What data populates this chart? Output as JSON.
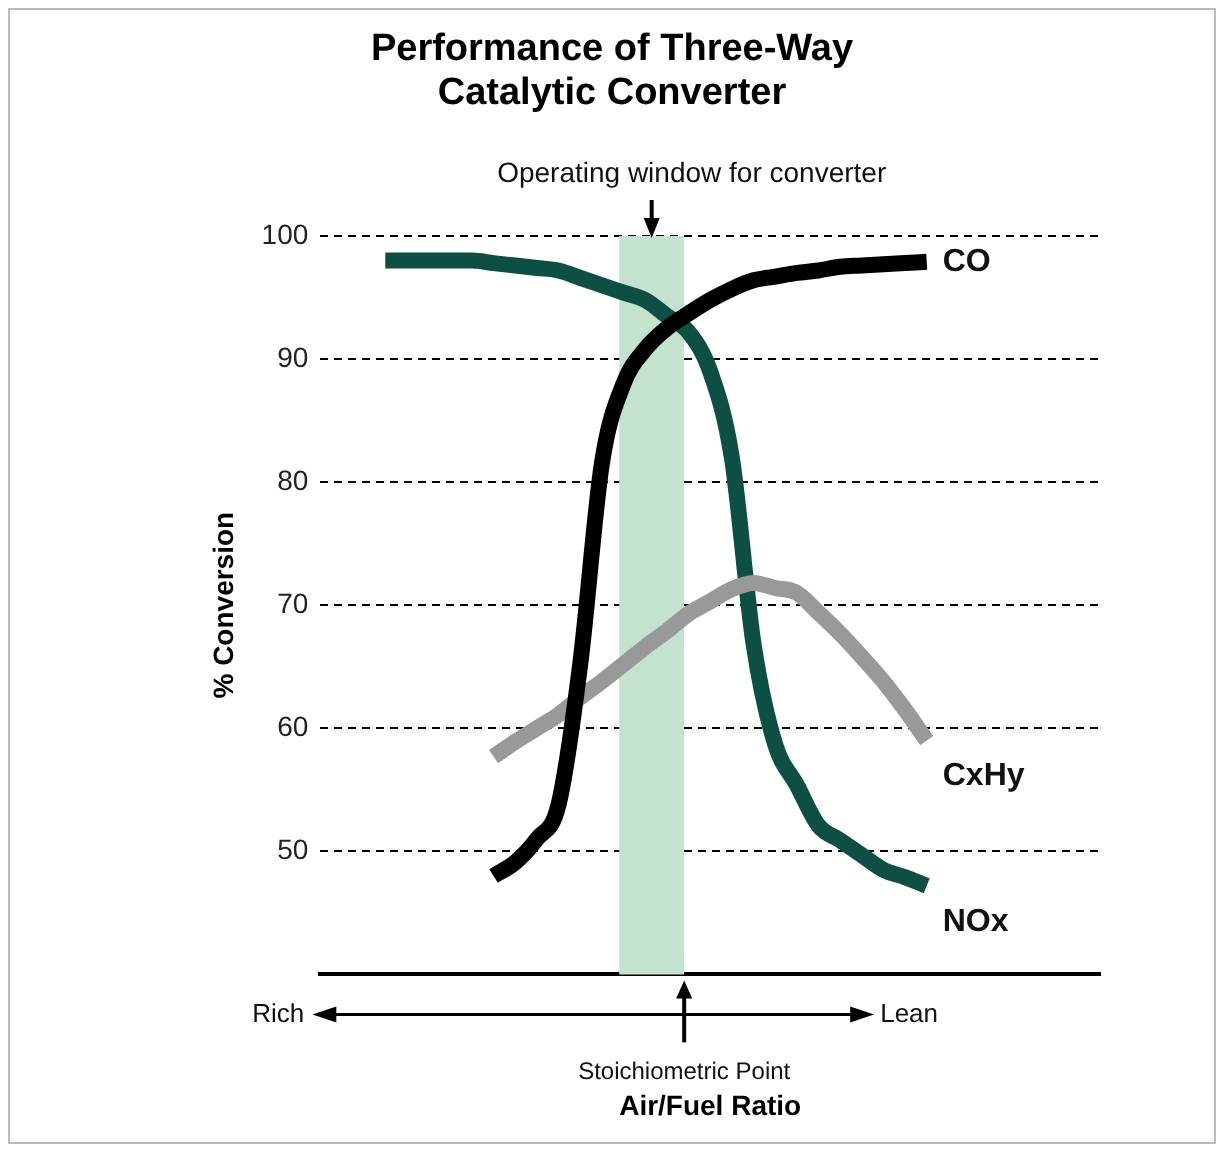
{
  "chart_data": {
    "type": "line",
    "title": "Performance of Three-Way Catalytic Converter",
    "xlabel": "Air/Fuel Ratio",
    "ylabel": "% Conversion",
    "categories": [
      null,
      null,
      null,
      null,
      null,
      null,
      null,
      null,
      null,
      null,
      null,
      null,
      null,
      null,
      null,
      null,
      null,
      null,
      null,
      null,
      null,
      null,
      null,
      null,
      null,
      null,
      null,
      null,
      null,
      null,
      null,
      null,
      null,
      null,
      null,
      null,
      null
    ],
    "ylim": [
      40,
      100
    ],
    "yticks": [
      50,
      60,
      70,
      80,
      90,
      100
    ],
    "tick_labels": "y",
    "grid": "y",
    "legend": false,
    "marker": "none",
    "line_style": "solid",
    "series": [
      {
        "name": "CO",
        "color": "#000000",
        "values": [
          null,
          null,
          null,
          null,
          null,
          null,
          null,
          null,
          48,
          49.1,
          51,
          53.8,
          65.2,
          81.5,
          88,
          90.8,
          92.5,
          93.7,
          94.8,
          95.7,
          96.4,
          96.7,
          97,
          97.2,
          97.5,
          97.6,
          97.7,
          97.8,
          97.9,
          null,
          null,
          null,
          null,
          null,
          null,
          null,
          null
        ]
      },
      {
        "name": "CxHy",
        "color": "#999999",
        "values": [
          null,
          null,
          null,
          null,
          null,
          null,
          null,
          null,
          57.7,
          58.9,
          60,
          61.1,
          62.5,
          63.8,
          65.2,
          66.6,
          67.9,
          69.3,
          70.3,
          71.3,
          71.8,
          71.4,
          71,
          69.4,
          67.7,
          65.8,
          63.8,
          61.5,
          59,
          null,
          null,
          null,
          null,
          null,
          null,
          null,
          null
        ]
      },
      {
        "name": "NOx",
        "color": "#0d4f42",
        "values": [
          null,
          null,
          null,
          98,
          98,
          98,
          98,
          98,
          97.8,
          97.6,
          97.4,
          97.2,
          96.6,
          96,
          95.4,
          94.8,
          93.5,
          92.2,
          89,
          82,
          66.9,
          58.7,
          55.4,
          52.1,
          50.9,
          49.7,
          48.5,
          47.9,
          47.2,
          null,
          null,
          null,
          null,
          null,
          null,
          null,
          null
        ]
      }
    ],
    "annotations": [
      "Operating window for converter",
      "Rich",
      "Lean",
      "Stoichiometric Point"
    ]
  }
}
